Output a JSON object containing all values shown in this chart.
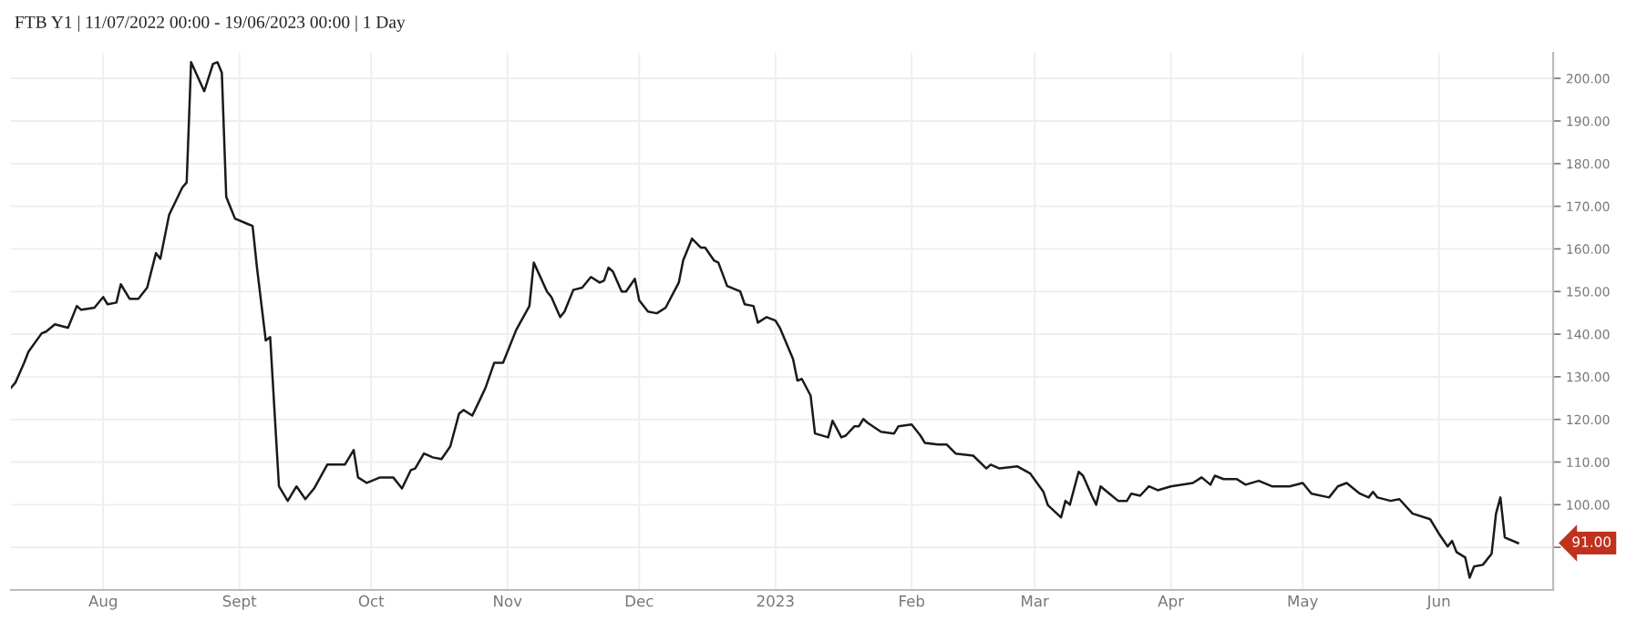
{
  "chart_data": {
    "type": "line",
    "title": "FTB Y1 | 11/07/2022 00:00 - 19/06/2023 00:00 | 1 Day",
    "series": [
      {
        "color": "#1a1a1a",
        "x": [
          "2022-07-11",
          "2022-07-12",
          "2022-07-14",
          "2022-07-15",
          "2022-07-18",
          "2022-07-19",
          "2022-07-21",
          "2022-07-24",
          "2022-07-26",
          "2022-07-27",
          "2022-07-30",
          "2022-08-01",
          "2022-08-02",
          "2022-08-04",
          "2022-08-05",
          "2022-08-07",
          "2022-08-09",
          "2022-08-11",
          "2022-08-13",
          "2022-08-14",
          "2022-08-16",
          "2022-08-19",
          "2022-08-20",
          "2022-08-21",
          "2022-08-24",
          "2022-08-26",
          "2022-08-27",
          "2022-08-28",
          "2022-08-29",
          "2022-08-31",
          "2022-09-03",
          "2022-09-04",
          "2022-09-05",
          "2022-09-07",
          "2022-09-08",
          "2022-09-10",
          "2022-09-12",
          "2022-09-14",
          "2022-09-16",
          "2022-09-18",
          "2022-09-21",
          "2022-09-25",
          "2022-09-27",
          "2022-09-28",
          "2022-09-30",
          "2022-10-03",
          "2022-10-06",
          "2022-10-08",
          "2022-10-10",
          "2022-10-11",
          "2022-10-13",
          "2022-10-15",
          "2022-10-17",
          "2022-10-19",
          "2022-10-21",
          "2022-10-22",
          "2022-10-24",
          "2022-10-26",
          "2022-10-27",
          "2022-10-29",
          "2022-10-31",
          "2022-11-03",
          "2022-11-06",
          "2022-11-07",
          "2022-11-10",
          "2022-11-11",
          "2022-11-13",
          "2022-11-14",
          "2022-11-16",
          "2022-11-18",
          "2022-11-20",
          "2022-11-22",
          "2022-11-23",
          "2022-11-24",
          "2022-11-25",
          "2022-11-27",
          "2022-11-28",
          "2022-11-30",
          "2022-12-01",
          "2022-12-03",
          "2022-12-05",
          "2022-12-07",
          "2022-12-10",
          "2022-12-11",
          "2022-12-13",
          "2022-12-15",
          "2022-12-16",
          "2022-12-18",
          "2022-12-19",
          "2022-12-21",
          "2022-12-24",
          "2022-12-25",
          "2022-12-27",
          "2022-12-28",
          "2022-12-30",
          "2023-01-01",
          "2023-01-02",
          "2023-01-05",
          "2023-01-06",
          "2023-01-07",
          "2023-01-09",
          "2023-01-10",
          "2023-01-13",
          "2023-01-14",
          "2023-01-16",
          "2023-01-17",
          "2023-01-19",
          "2023-01-20",
          "2023-01-21",
          "2023-01-22",
          "2023-01-25",
          "2023-01-28",
          "2023-01-29",
          "2023-02-01",
          "2023-02-03",
          "2023-02-04",
          "2023-02-07",
          "2023-02-09",
          "2023-02-11",
          "2023-02-15",
          "2023-02-18",
          "2023-02-19",
          "2023-02-21",
          "2023-02-25",
          "2023-02-28",
          "2023-03-03",
          "2023-03-04",
          "2023-03-07",
          "2023-03-08",
          "2023-03-09",
          "2023-03-11",
          "2023-03-12",
          "2023-03-14",
          "2023-03-15",
          "2023-03-16",
          "2023-03-18",
          "2023-03-20",
          "2023-03-22",
          "2023-03-23",
          "2023-03-25",
          "2023-03-27",
          "2023-03-29",
          "2023-04-01",
          "2023-04-06",
          "2023-04-08",
          "2023-04-10",
          "2023-04-11",
          "2023-04-13",
          "2023-04-16",
          "2023-04-18",
          "2023-04-21",
          "2023-04-24",
          "2023-04-28",
          "2023-05-01",
          "2023-05-03",
          "2023-05-07",
          "2023-05-09",
          "2023-05-11",
          "2023-05-14",
          "2023-05-16",
          "2023-05-17",
          "2023-05-18",
          "2023-05-21",
          "2023-05-23",
          "2023-05-26",
          "2023-05-30",
          "2023-06-01",
          "2023-06-03",
          "2023-06-04",
          "2023-06-05",
          "2023-06-07",
          "2023-06-08",
          "2023-06-09",
          "2023-06-11",
          "2023-06-13",
          "2023-06-14",
          "2023-06-15",
          "2023-06-16",
          "2023-06-19"
        ],
        "values": [
          127.4,
          128.6,
          133.3,
          135.9,
          140.2,
          140.6,
          142.3,
          141.5,
          146.6,
          145.7,
          146.2,
          148.7,
          147,
          147.4,
          151.7,
          148.3,
          148.3,
          150.9,
          159,
          157.7,
          168,
          174.4,
          175.6,
          203.8,
          197,
          203.4,
          203.8,
          201.3,
          172.2,
          167.1,
          165.8,
          165.4,
          155.6,
          138.5,
          139.3,
          104.3,
          100.9,
          104.3,
          101.3,
          103.8,
          109.4,
          109.4,
          112.8,
          106.4,
          105.1,
          106.4,
          106.4,
          103.8,
          108.1,
          108.5,
          112,
          111.1,
          110.7,
          113.7,
          121.4,
          122.2,
          120.9,
          125.2,
          127.4,
          133.3,
          133.3,
          141,
          146.6,
          156.8,
          150,
          148.7,
          144,
          145.3,
          150.4,
          150.9,
          153.4,
          152.1,
          152.6,
          155.6,
          154.7,
          150,
          150,
          153,
          147.9,
          145.3,
          144.9,
          146.2,
          152.1,
          157.3,
          162.4,
          160.3,
          160.3,
          157.3,
          156.8,
          151.3,
          150,
          147,
          146.6,
          142.7,
          144,
          143.2,
          141.5,
          134.2,
          129.1,
          129.5,
          125.6,
          116.7,
          115.8,
          119.7,
          115.8,
          116.2,
          118.4,
          118.4,
          120.1,
          119.2,
          117.1,
          116.7,
          118.4,
          118.8,
          116.2,
          114.5,
          114.1,
          114.1,
          112,
          111.5,
          108.5,
          109.4,
          108.5,
          109,
          107.3,
          103,
          99.9,
          97,
          100.9,
          100,
          107.7,
          106.8,
          102.1,
          100,
          104.3,
          102.6,
          100.9,
          100.9,
          102.6,
          102.1,
          104.3,
          103.4,
          104.3,
          105.1,
          106.4,
          104.7,
          106.8,
          106,
          106,
          104.7,
          105.6,
          104.3,
          104.3,
          105.1,
          102.6,
          101.7,
          104.3,
          105.1,
          102.6,
          101.7,
          103,
          101.7,
          100.9,
          101.3,
          97.9,
          96.6,
          93.2,
          90.2,
          91.5,
          88.9,
          87.6,
          82.9,
          85.5,
          85.9,
          88.5,
          97.9,
          101.7,
          92.3,
          91
        ]
      }
    ],
    "xlim": [
      "2022-07-11",
      "2023-06-27"
    ],
    "xticks": [
      {
        "value": "2022-08-01",
        "label": "Aug"
      },
      {
        "value": "2022-09-01",
        "label": "Sept"
      },
      {
        "value": "2022-10-01",
        "label": "Oct"
      },
      {
        "value": "2022-11-01",
        "label": "Nov"
      },
      {
        "value": "2022-12-01",
        "label": "Dec"
      },
      {
        "value": "2023-01-01",
        "label": "2023"
      },
      {
        "value": "2023-02-01",
        "label": "Feb"
      },
      {
        "value": "2023-03-01",
        "label": "Mar"
      },
      {
        "value": "2023-04-01",
        "label": "Apr"
      },
      {
        "value": "2023-05-01",
        "label": "May"
      },
      {
        "value": "2023-06-01",
        "label": "Jun"
      }
    ],
    "ylim": [
      80,
      206
    ],
    "yticks": [
      {
        "value": 90,
        "label": null
      },
      {
        "value": 100,
        "label": "100.00"
      },
      {
        "value": 110,
        "label": "110.00"
      },
      {
        "value": 120,
        "label": "120.00"
      },
      {
        "value": 130,
        "label": "130.00"
      },
      {
        "value": 140,
        "label": "140.00"
      },
      {
        "value": 150,
        "label": "150.00"
      },
      {
        "value": 160,
        "label": "160.00"
      },
      {
        "value": 170,
        "label": "170.00"
      },
      {
        "value": 180,
        "label": "180.00"
      },
      {
        "value": 190,
        "label": "190.00"
      },
      {
        "value": 200,
        "label": "200.00"
      }
    ],
    "annotations": [
      "91.00"
    ],
    "grid": true,
    "marker": "none",
    "line_style": "solid"
  }
}
